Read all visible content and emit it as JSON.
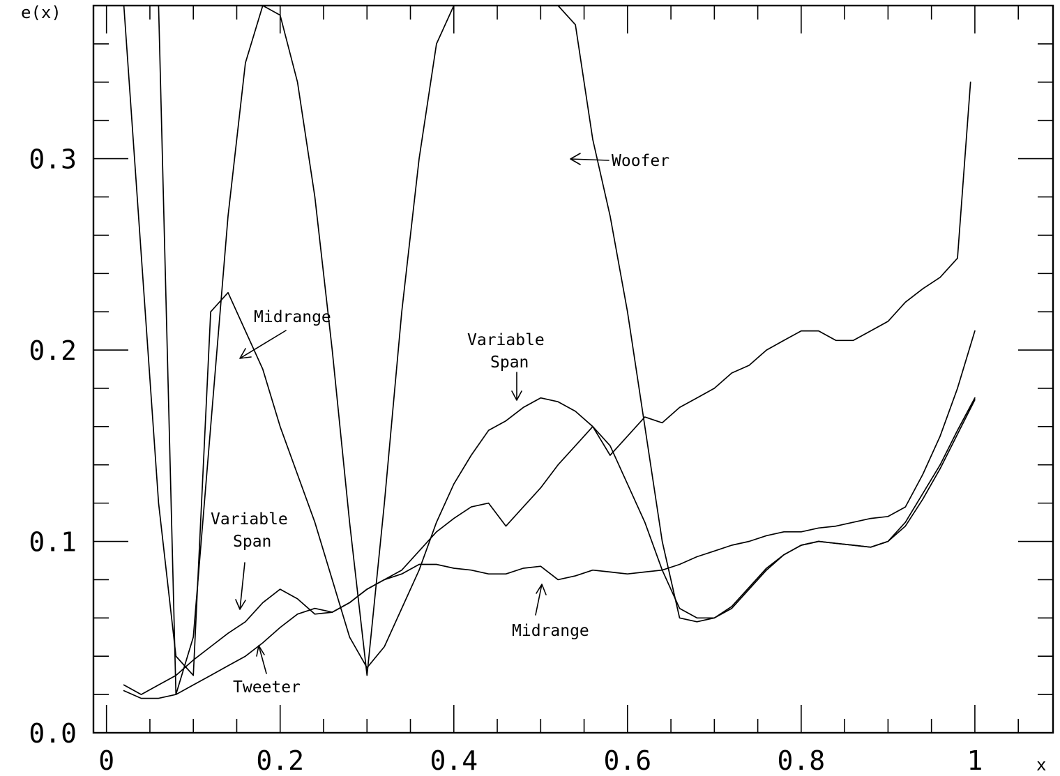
{
  "chart_data": {
    "type": "line",
    "title": "",
    "xlabel": "x",
    "ylabel": "e(x)",
    "xlim": [
      -0.015,
      1.09
    ],
    "ylim": [
      0.0,
      0.38
    ],
    "x_ticks": [
      0,
      0.2,
      0.4,
      0.6,
      0.8,
      1
    ],
    "x_tick_labels": [
      "0",
      "0.2",
      "0.4",
      "0.6",
      "0.8",
      "1"
    ],
    "y_ticks": [
      0.0,
      0.1,
      0.2,
      0.3
    ],
    "y_tick_labels": [
      "0.0",
      "0.1",
      "0.2",
      "0.3"
    ],
    "grid": false,
    "series": [
      {
        "name": "Woofer",
        "x": [
          0.02,
          0.04,
          0.06,
          0.08,
          0.1,
          0.12,
          0.14,
          0.16,
          0.18,
          0.2,
          0.22,
          0.24,
          0.26,
          0.28,
          0.3,
          0.32,
          0.34,
          0.36,
          0.38,
          0.4,
          0.42,
          0.44,
          0.46,
          0.48,
          0.5,
          0.52,
          0.54,
          0.56,
          0.58,
          0.6,
          0.62,
          0.64,
          0.66,
          0.68,
          0.7,
          0.72,
          0.74,
          0.76,
          0.78,
          0.8,
          0.82,
          0.84,
          0.86,
          0.88,
          0.9,
          0.92,
          0.94,
          0.96,
          0.98,
          1.0
        ],
        "y": [
          0.38,
          0.38,
          0.38,
          0.02,
          0.05,
          0.16,
          0.27,
          0.35,
          0.38,
          0.375,
          0.34,
          0.28,
          0.2,
          0.11,
          0.03,
          0.12,
          0.22,
          0.3,
          0.36,
          0.38,
          0.38,
          0.38,
          0.38,
          0.38,
          0.38,
          0.38,
          0.37,
          0.31,
          0.27,
          0.22,
          0.16,
          0.1,
          0.06,
          0.058,
          0.06,
          0.065,
          0.075,
          0.085,
          0.093,
          0.098,
          0.1,
          0.099,
          0.098,
          0.097,
          0.1,
          0.11,
          0.125,
          0.14,
          0.158,
          0.175
        ]
      },
      {
        "name": "Midrange",
        "x": [
          0.02,
          0.04,
          0.06,
          0.08,
          0.1,
          0.12,
          0.14,
          0.16,
          0.18,
          0.2,
          0.22,
          0.24,
          0.26,
          0.28,
          0.3,
          0.32,
          0.34,
          0.36,
          0.38,
          0.4,
          0.42,
          0.44,
          0.46,
          0.48,
          0.5,
          0.52,
          0.54,
          0.56,
          0.58,
          0.6,
          0.62,
          0.64,
          0.66,
          0.68,
          0.7,
          0.72,
          0.74,
          0.76,
          0.78,
          0.8,
          0.82,
          0.84,
          0.86,
          0.88,
          0.9,
          0.92,
          0.94,
          0.96,
          0.98,
          1.0
        ],
        "y": [
          0.38,
          0.25,
          0.12,
          0.04,
          0.03,
          0.22,
          0.23,
          0.21,
          0.19,
          0.16,
          0.135,
          0.11,
          0.08,
          0.05,
          0.034,
          0.045,
          0.065,
          0.085,
          0.11,
          0.13,
          0.145,
          0.158,
          0.163,
          0.17,
          0.175,
          0.173,
          0.168,
          0.16,
          0.15,
          0.13,
          0.11,
          0.085,
          0.065,
          0.06,
          0.06,
          0.066,
          0.076,
          0.086,
          0.093,
          0.098,
          0.1,
          0.099,
          0.098,
          0.097,
          0.1,
          0.108,
          0.122,
          0.138,
          0.156,
          0.174
        ]
      },
      {
        "name": "Tweeter",
        "x": [
          0.02,
          0.04,
          0.06,
          0.08,
          0.1,
          0.12,
          0.14,
          0.16,
          0.18,
          0.2,
          0.22,
          0.24,
          0.26,
          0.28,
          0.3,
          0.32,
          0.34,
          0.36,
          0.38,
          0.4,
          0.42,
          0.44,
          0.46,
          0.48,
          0.5,
          0.52,
          0.54,
          0.56,
          0.58,
          0.6,
          0.62,
          0.64,
          0.66,
          0.68,
          0.7,
          0.72,
          0.74,
          0.76,
          0.78,
          0.8,
          0.82,
          0.84,
          0.86,
          0.88,
          0.9,
          0.92,
          0.94,
          0.96,
          0.98,
          0.995
        ],
        "y": [
          0.022,
          0.018,
          0.018,
          0.02,
          0.025,
          0.03,
          0.035,
          0.04,
          0.047,
          0.055,
          0.062,
          0.065,
          0.063,
          0.068,
          0.075,
          0.08,
          0.085,
          0.095,
          0.105,
          0.112,
          0.118,
          0.12,
          0.108,
          0.118,
          0.128,
          0.14,
          0.15,
          0.16,
          0.145,
          0.155,
          0.165,
          0.162,
          0.17,
          0.175,
          0.18,
          0.188,
          0.192,
          0.2,
          0.205,
          0.21,
          0.21,
          0.205,
          0.205,
          0.21,
          0.215,
          0.225,
          0.232,
          0.238,
          0.248,
          0.34
        ]
      },
      {
        "name": "Variable Span",
        "x": [
          0.02,
          0.04,
          0.06,
          0.08,
          0.1,
          0.12,
          0.14,
          0.16,
          0.18,
          0.2,
          0.22,
          0.24,
          0.26,
          0.28,
          0.3,
          0.32,
          0.34,
          0.36,
          0.38,
          0.4,
          0.42,
          0.44,
          0.46,
          0.48,
          0.5,
          0.52,
          0.54,
          0.56,
          0.58,
          0.6,
          0.62,
          0.64,
          0.66,
          0.68,
          0.7,
          0.72,
          0.74,
          0.76,
          0.78,
          0.8,
          0.82,
          0.84,
          0.86,
          0.88,
          0.9,
          0.92,
          0.94,
          0.96,
          0.98,
          1.0
        ],
        "y": [
          0.025,
          0.02,
          0.025,
          0.03,
          0.038,
          0.045,
          0.052,
          0.058,
          0.068,
          0.075,
          0.07,
          0.062,
          0.063,
          0.068,
          0.075,
          0.08,
          0.083,
          0.088,
          0.088,
          0.086,
          0.085,
          0.083,
          0.083,
          0.086,
          0.087,
          0.08,
          0.082,
          0.085,
          0.084,
          0.083,
          0.084,
          0.085,
          0.088,
          0.092,
          0.095,
          0.098,
          0.1,
          0.103,
          0.105,
          0.105,
          0.107,
          0.108,
          0.11,
          0.112,
          0.113,
          0.118,
          0.135,
          0.155,
          0.18,
          0.21
        ]
      }
    ],
    "annotations": [
      {
        "text": "Woofer"
      },
      {
        "text": "Midrange"
      },
      {
        "text": "Variable"
      },
      {
        "text": "Span"
      },
      {
        "text": "Variable"
      },
      {
        "text": "Span"
      },
      {
        "text": "Midrange"
      },
      {
        "text": "Tweeter"
      }
    ]
  }
}
